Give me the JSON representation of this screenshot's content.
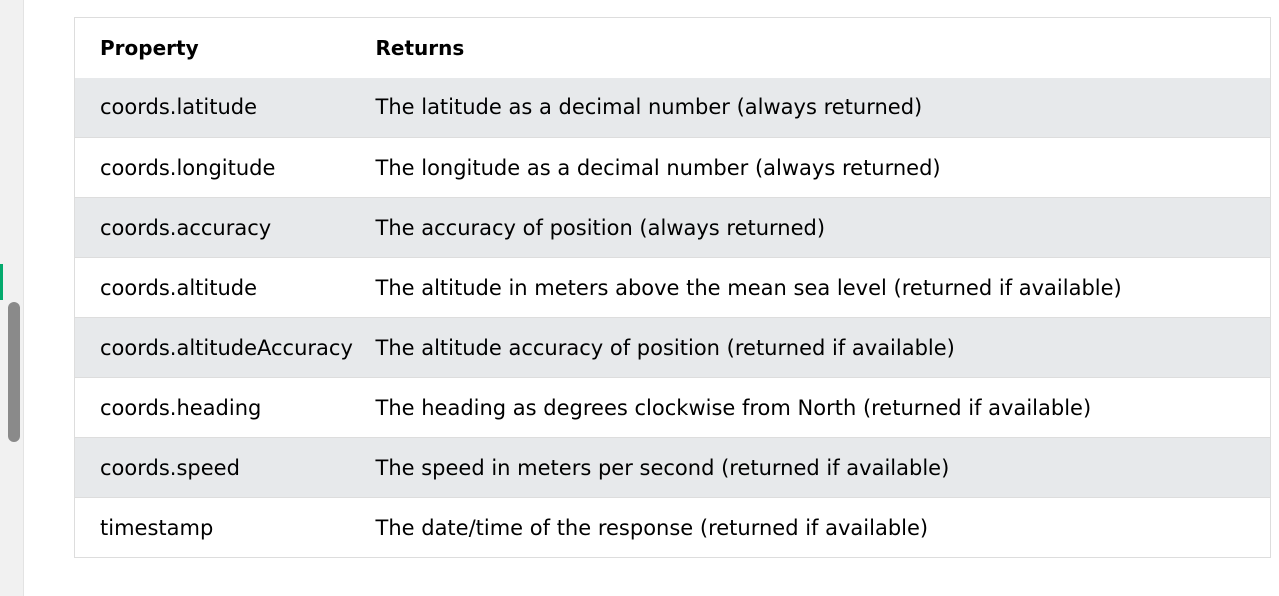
{
  "table": {
    "headers": {
      "property": "Property",
      "returns": "Returns"
    },
    "rows": [
      {
        "property": "coords.latitude",
        "returns": "The latitude as a decimal number (always returned)"
      },
      {
        "property": "coords.longitude",
        "returns": "The longitude as a decimal number (always returned)"
      },
      {
        "property": "coords.accuracy",
        "returns": "The accuracy of position (always returned)"
      },
      {
        "property": "coords.altitude",
        "returns": "The altitude in meters above the mean sea level (returned if available)"
      },
      {
        "property": "coords.altitudeAccuracy",
        "returns": "The altitude accuracy of position (returned if available)"
      },
      {
        "property": "coords.heading",
        "returns": "The heading as degrees clockwise from North (returned if available)"
      },
      {
        "property": "coords.speed",
        "returns": "The speed in meters per second (returned if available)"
      },
      {
        "property": "timestamp",
        "returns": "The date/time of the response (returned if available)"
      }
    ]
  },
  "colors": {
    "stripe": "#e7e9eb",
    "accent": "#04aa6d",
    "border": "#dddddd"
  }
}
